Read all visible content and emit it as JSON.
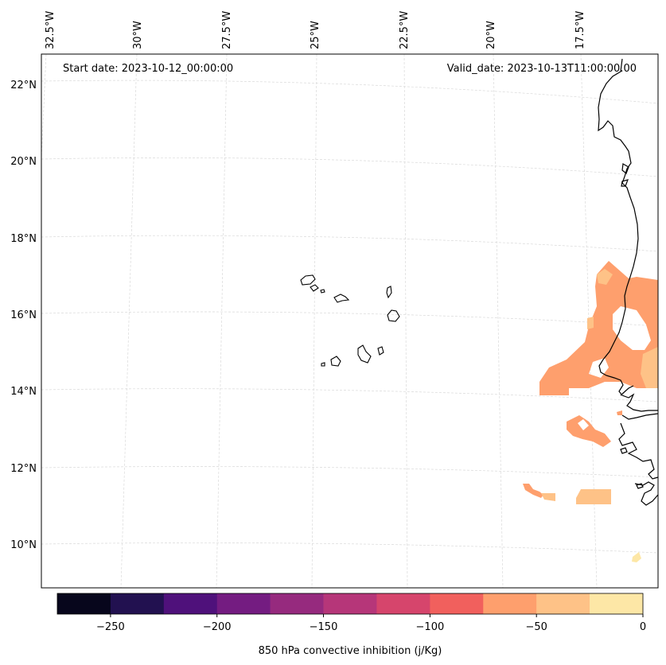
{
  "map": {
    "start_label": "Start date: 2023-10-12_00:00:00",
    "valid_label": "Valid_date: 2023-10-13T11:00:00.00",
    "lon_labels": [
      "32.5°W",
      "30°W",
      "27.5°W",
      "25°W",
      "22.5°W",
      "20°W",
      "17.5°W"
    ],
    "lat_labels": [
      "22°N",
      "20°N",
      "18°N",
      "16°N",
      "14°N",
      "12°N",
      "10°N"
    ],
    "colors": {
      "coast": "#000000",
      "grid": "#d9d9d9",
      "cin_minus_50": "#fe9f6d",
      "cin_minus_25": "#fec287",
      "cin_minus_0": "#fde7a6"
    }
  },
  "colorbar": {
    "label": "850 hPa convective inhibition (j/Kg)",
    "tick_labels": [
      "−250",
      "−200",
      "−150",
      "−100",
      "−50",
      "0"
    ],
    "colors": [
      "#07061c",
      "#221150",
      "#4f117b",
      "#741c81",
      "#962a7e",
      "#b63679",
      "#d6456c",
      "#f1605d",
      "#fe9f6d",
      "#fec287",
      "#fde7a6"
    ],
    "colors_note": "11 bins from -275 to 0",
    "bins": [
      -275,
      -250,
      -225,
      -200,
      -175,
      -150,
      -125,
      -100,
      -75,
      -50,
      -25,
      0
    ]
  }
}
